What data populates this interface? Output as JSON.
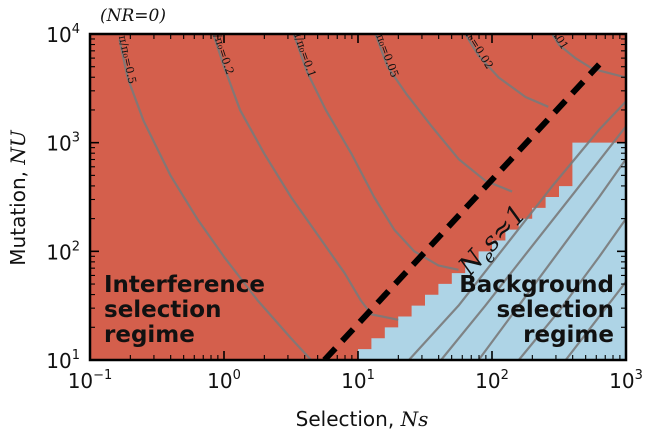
{
  "chart_data": {
    "type": "heatmap",
    "title": "(NR=0)",
    "xlabel": {
      "text": "Selection, ",
      "math": "Ns"
    },
    "ylabel": {
      "text": "Mutation, ",
      "math": "NU"
    },
    "x_scale": "log",
    "y_scale": "log",
    "xlim": [
      0.1,
      1000
    ],
    "ylim": [
      10,
      10000
    ],
    "x_ticks": [
      {
        "base": "10",
        "exp": "−1",
        "value": 0.1
      },
      {
        "base": "10",
        "exp": "0",
        "value": 1
      },
      {
        "base": "10",
        "exp": "1",
        "value": 10
      },
      {
        "base": "10",
        "exp": "2",
        "value": 100
      },
      {
        "base": "10",
        "exp": "3",
        "value": 1000
      }
    ],
    "y_ticks": [
      {
        "base": "10",
        "exp": "1",
        "value": 10
      },
      {
        "base": "10",
        "exp": "2",
        "value": 100
      },
      {
        "base": "10",
        "exp": "3",
        "value": 1000
      },
      {
        "base": "10",
        "exp": "4",
        "value": 10000
      }
    ],
    "regions": [
      {
        "name": "interference",
        "color": "#d45f4c",
        "label_lines": [
          "Interference",
          "selection",
          "regime"
        ]
      },
      {
        "name": "background",
        "color": "#aed4e6",
        "label_lines": [
          "Background",
          "selection",
          "regime"
        ]
      }
    ],
    "boundary_staircase_log10": [
      [
        1.0,
        1.0
      ],
      [
        1.0,
        1.1
      ],
      [
        1.1,
        1.1
      ],
      [
        1.1,
        1.2
      ],
      [
        1.2,
        1.2
      ],
      [
        1.2,
        1.3
      ],
      [
        1.3,
        1.3
      ],
      [
        1.3,
        1.4
      ],
      [
        1.4,
        1.4
      ],
      [
        1.4,
        1.5
      ],
      [
        1.5,
        1.5
      ],
      [
        1.5,
        1.6
      ],
      [
        1.6,
        1.6
      ],
      [
        1.6,
        1.7
      ],
      [
        1.7,
        1.7
      ],
      [
        1.7,
        1.8
      ],
      [
        1.8,
        1.8
      ],
      [
        1.8,
        1.9
      ],
      [
        1.9,
        1.9
      ],
      [
        1.9,
        2.0
      ],
      [
        2.0,
        2.0
      ],
      [
        2.0,
        2.1
      ],
      [
        2.1,
        2.1
      ],
      [
        2.1,
        2.2
      ],
      [
        2.2,
        2.2
      ],
      [
        2.2,
        2.3
      ],
      [
        2.3,
        2.3
      ],
      [
        2.3,
        2.4
      ],
      [
        2.4,
        2.4
      ],
      [
        2.4,
        2.5
      ],
      [
        2.5,
        2.5
      ],
      [
        2.5,
        2.6
      ],
      [
        2.6,
        2.6
      ],
      [
        2.6,
        3.0
      ]
    ],
    "neutral_line": {
      "label": "N_e s≈1",
      "label_main": "N",
      "label_sub": "e",
      "label_rest": "s≈1",
      "points_log10": [
        [
          0.75,
          1.0
        ],
        [
          2.8,
          3.72
        ]
      ]
    },
    "contours": [
      {
        "label": "π/π₀=0.5",
        "points_log10": [
          [
            -0.78,
            3.95
          ],
          [
            -0.72,
            3.6
          ],
          [
            -0.6,
            3.2
          ],
          [
            -0.4,
            2.7
          ],
          [
            -0.2,
            2.3
          ],
          [
            0.0,
            1.95
          ],
          [
            0.25,
            1.55
          ],
          [
            0.5,
            1.2
          ],
          [
            0.65,
            1.0
          ]
        ]
      },
      {
        "label": "π/π₀=0.2",
        "points_log10": [
          [
            -0.08,
            4.0
          ],
          [
            0.0,
            3.7
          ],
          [
            0.12,
            3.3
          ],
          [
            0.3,
            2.9
          ],
          [
            0.5,
            2.5
          ],
          [
            0.7,
            2.15
          ],
          [
            0.9,
            1.8
          ],
          [
            1.02,
            1.55
          ],
          [
            1.1,
            1.42
          ],
          [
            1.3,
            1.37
          ]
        ]
      },
      {
        "label": "π/π₀=0.1",
        "points_log10": [
          [
            0.52,
            4.0
          ],
          [
            0.62,
            3.65
          ],
          [
            0.76,
            3.3
          ],
          [
            0.95,
            2.9
          ],
          [
            1.12,
            2.5
          ],
          [
            1.27,
            2.2
          ],
          [
            1.42,
            2.0
          ],
          [
            1.6,
            1.87
          ],
          [
            1.75,
            1.83
          ]
        ]
      },
      {
        "label": "π/π₀=0.05",
        "points_log10": [
          [
            1.13,
            4.0
          ],
          [
            1.22,
            3.7
          ],
          [
            1.36,
            3.45
          ],
          [
            1.55,
            3.15
          ],
          [
            1.75,
            2.85
          ],
          [
            1.95,
            2.65
          ],
          [
            2.15,
            2.55
          ]
        ]
      },
      {
        "label": "π/π₀=0.02",
        "points_log10": [
          [
            1.8,
            4.0
          ],
          [
            1.9,
            3.8
          ],
          [
            2.05,
            3.6
          ],
          [
            2.25,
            3.42
          ],
          [
            2.42,
            3.33
          ]
        ]
      },
      {
        "label": "0.01",
        "points_log10": [
          [
            2.45,
            4.0
          ],
          [
            2.5,
            3.9
          ],
          [
            2.62,
            3.78
          ],
          [
            2.75,
            3.68
          ],
          [
            3.0,
            3.6
          ]
        ]
      },
      {
        "label": "",
        "points_log10": [
          [
            1.38,
            1.0
          ],
          [
            1.75,
            1.5
          ],
          [
            2.1,
            2.05
          ],
          [
            2.45,
            2.6
          ],
          [
            2.8,
            3.12
          ],
          [
            3.0,
            3.38
          ]
        ]
      },
      {
        "label": "",
        "points_log10": [
          [
            1.62,
            1.0
          ],
          [
            1.95,
            1.5
          ],
          [
            2.3,
            2.05
          ],
          [
            2.62,
            2.55
          ],
          [
            3.0,
            3.15
          ]
        ]
      },
      {
        "label": "",
        "points_log10": [
          [
            1.9,
            1.0
          ],
          [
            2.2,
            1.5
          ],
          [
            2.5,
            2.0
          ],
          [
            2.8,
            2.5
          ],
          [
            3.0,
            2.85
          ]
        ]
      },
      {
        "label": "",
        "points_log10": [
          [
            2.2,
            1.0
          ],
          [
            2.5,
            1.45
          ],
          [
            2.8,
            1.95
          ],
          [
            3.0,
            2.3
          ]
        ]
      },
      {
        "label": "",
        "points_log10": [
          [
            2.55,
            1.0
          ],
          [
            2.8,
            1.4
          ],
          [
            3.0,
            1.72
          ]
        ]
      }
    ]
  }
}
